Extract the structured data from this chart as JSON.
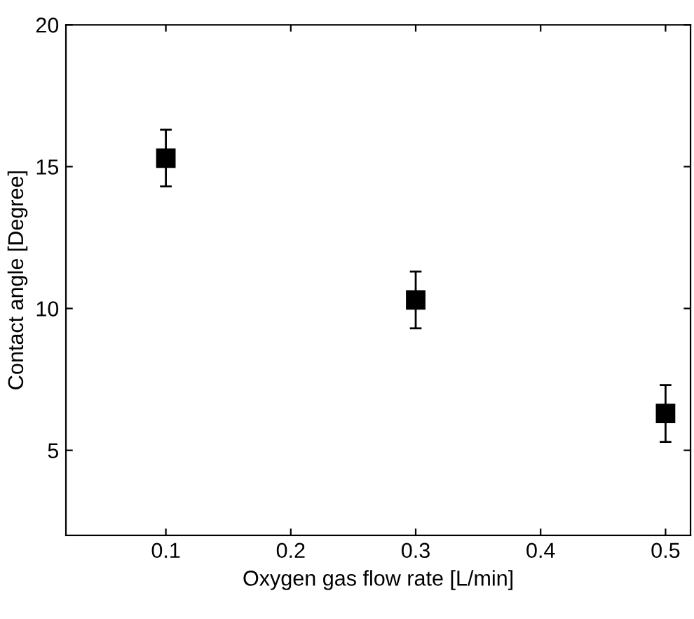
{
  "chart_data": {
    "type": "scatter",
    "xlabel": "Oxygen gas flow rate [L/min]",
    "ylabel": "Contact angle [Degree]",
    "x": [
      0.1,
      0.3,
      0.5
    ],
    "series": [
      {
        "color": "#000000",
        "values": [
          15.3,
          10.3,
          6.3
        ],
        "errors": [
          1,
          1,
          1
        ]
      }
    ],
    "marker": "square",
    "xlim": [
      0.02,
      0.52
    ],
    "xticks": [
      0.1,
      0.2,
      0.3,
      0.4,
      0.5
    ],
    "ylim": [
      2,
      20
    ],
    "yticks": [
      5,
      10,
      15,
      20
    ],
    "grid": false
  }
}
